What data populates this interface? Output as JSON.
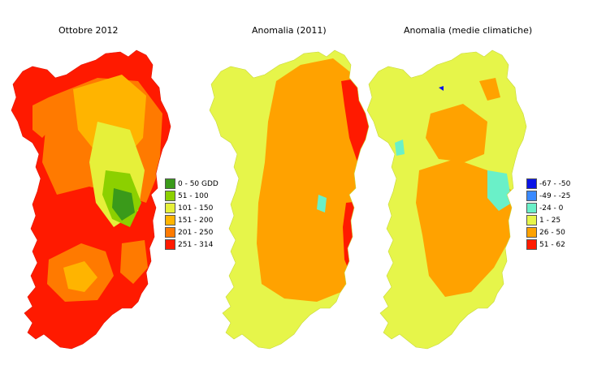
{
  "maps": [
    {
      "title": "Ottobre 2012",
      "legend": "gdd"
    },
    {
      "title": "Anomalia (2011)",
      "legend": null
    },
    {
      "title": "Anomalia (medie climatiche)",
      "legend": "anomaly"
    }
  ],
  "legends": {
    "gdd": {
      "items": [
        {
          "label": "0 - 50 GDD",
          "color": "#3a9a1a"
        },
        {
          "label": "51 - 100",
          "color": "#8cd000"
        },
        {
          "label": "101 - 150",
          "color": "#e6f03a"
        },
        {
          "label": "151 - 200",
          "color": "#ffb400"
        },
        {
          "label": "201 - 250",
          "color": "#ff7a00"
        },
        {
          "label": "251 - 314",
          "color": "#ff1a00"
        }
      ]
    },
    "anomaly": {
      "items": [
        {
          "label": "-67 - -50",
          "color": "#0a14e6"
        },
        {
          "label": "-49 - -25",
          "color": "#3a8aff"
        },
        {
          "label": "-24 - 0",
          "color": "#6af0c8"
        },
        {
          "label": "1 - 25",
          "color": "#e6f54a"
        },
        {
          "label": "26 - 50",
          "color": "#ffa200"
        },
        {
          "label": "51 - 62",
          "color": "#ff1a00"
        }
      ]
    }
  }
}
